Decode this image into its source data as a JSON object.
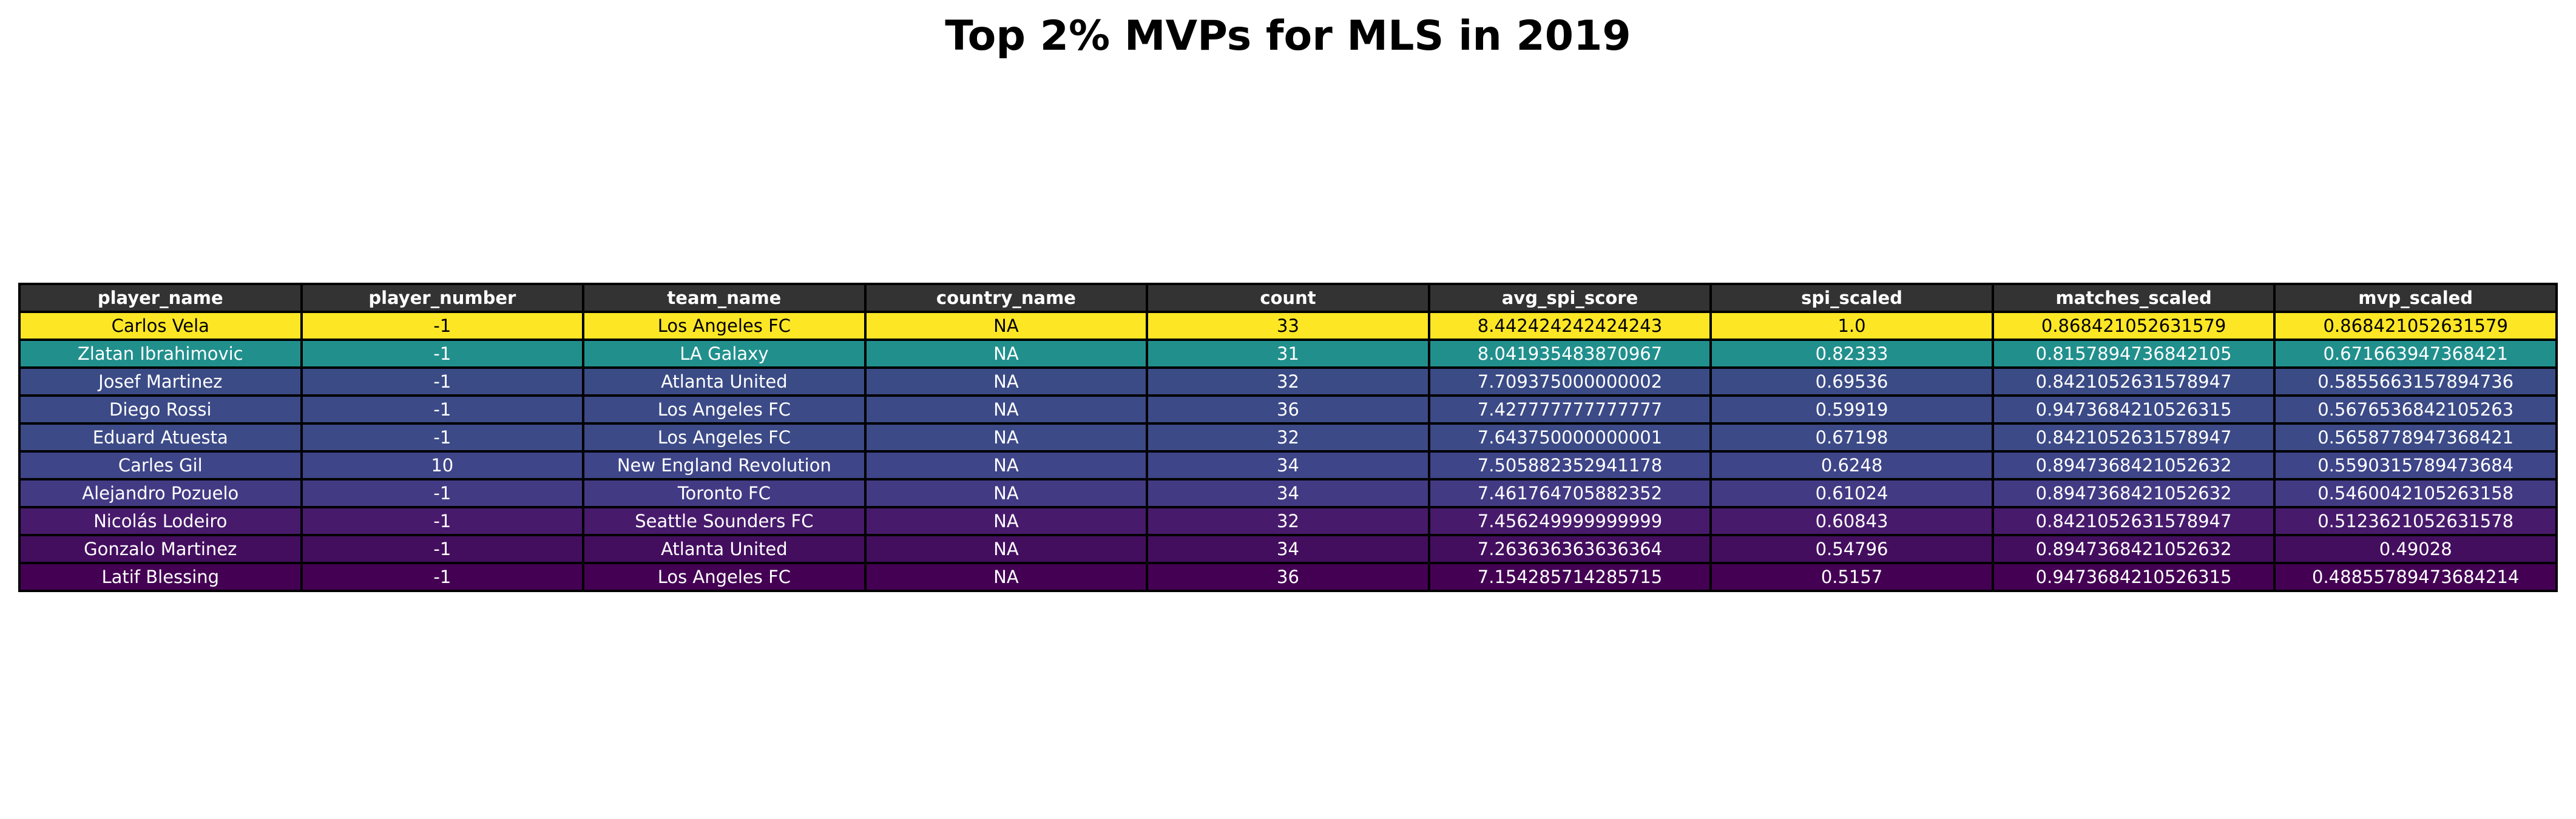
{
  "chart_data": {
    "type": "table",
    "title": "Top 2% MVPs for MLS in 2019",
    "columns": [
      "player_name",
      "player_number",
      "team_name",
      "country_name",
      "count",
      "avg_spi_score",
      "spi_scaled",
      "matches_scaled",
      "mvp_scaled"
    ],
    "rows": [
      [
        "Carlos Vela",
        "-1",
        "Los Angeles FC",
        "NA",
        "33",
        "8.442424242424243",
        "1.0",
        "0.868421052631579",
        "0.868421052631579"
      ],
      [
        "Zlatan Ibrahimovic",
        "-1",
        "LA Galaxy",
        "NA",
        "31",
        "8.041935483870967",
        "0.82333",
        "0.8157894736842105",
        "0.671663947368421"
      ],
      [
        "Josef Martinez",
        "-1",
        "Atlanta United",
        "NA",
        "32",
        "7.709375000000002",
        "0.69536",
        "0.8421052631578947",
        "0.5855663157894736"
      ],
      [
        "Diego Rossi",
        "-1",
        "Los Angeles FC",
        "NA",
        "36",
        "7.427777777777777",
        "0.59919",
        "0.9473684210526315",
        "0.5676536842105263"
      ],
      [
        "Eduard Atuesta",
        "-1",
        "Los Angeles FC",
        "NA",
        "32",
        "7.643750000000001",
        "0.67198",
        "0.8421052631578947",
        "0.5658778947368421"
      ],
      [
        "Carles Gil",
        "10",
        "New England Revolution",
        "NA",
        "34",
        "7.505882352941178",
        "0.6248",
        "0.8947368421052632",
        "0.5590315789473684"
      ],
      [
        "Alejandro Pozuelo",
        "-1",
        "Toronto FC",
        "NA",
        "34",
        "7.461764705882352",
        "0.61024",
        "0.8947368421052632",
        "0.5460042105263158"
      ],
      [
        "Nicolás Lodeiro",
        "-1",
        "Seattle Sounders FC",
        "NA",
        "32",
        "7.456249999999999",
        "0.60843",
        "0.8421052631578947",
        "0.5123621052631578"
      ],
      [
        "Gonzalo Martinez",
        "-1",
        "Atlanta United",
        "NA",
        "34",
        "7.263636363636364",
        "0.54796",
        "0.8947368421052632",
        "0.49028"
      ],
      [
        "Latif Blessing",
        "-1",
        "Los Angeles FC",
        "NA",
        "36",
        "7.154285714285715",
        "0.5157",
        "0.9473684210526315",
        "0.48855789473684214"
      ]
    ],
    "row_colors": [
      "#fde725",
      "#21908d",
      "#3b4b86",
      "#3c4a87",
      "#3c4a87",
      "#3e4588",
      "#433a84",
      "#481a6c",
      "#440e5f",
      "#440154"
    ],
    "row_text_colors": [
      "#000000",
      "#ffffff",
      "#ffffff",
      "#ffffff",
      "#ffffff",
      "#ffffff",
      "#ffffff",
      "#ffffff",
      "#ffffff",
      "#ffffff"
    ],
    "header_color": "#333333",
    "header_text_color": "#ffffff"
  }
}
